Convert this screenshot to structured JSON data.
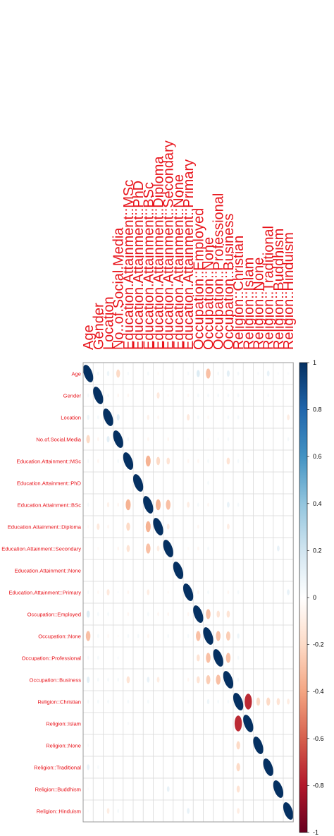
{
  "chart_data": {
    "type": "heatmap",
    "variables": [
      "Age",
      "Gender",
      "Location",
      "No..of.Social.Media",
      "Education.Attainment::MSc",
      "Education.Attainment::PhD",
      "Education.Attainment::BSc",
      "Education.Attainment::Diploma",
      "Education.Attainment::Secondary",
      "Education.Attainment::None",
      "Education.Attainment::Primary",
      "Occupation::Employed",
      "Occupation::None",
      "Occupation::Professional",
      "Occupation::Business",
      "Religion::Christian",
      "Religion::Islam",
      "Religion::None",
      "Religion::Traditional",
      "Religion::Buddhism",
      "Religion::Hinduism"
    ],
    "row_labels": [
      "Age",
      "Gender",
      "Location",
      "No.of.Social.Media",
      "Education.Attainment::MSc",
      "Education.Attainment::PhD",
      "Education.Attainment::BSc",
      "Education.Attainment::Diploma",
      "Education.Attainment::Secondary",
      "Education.Attainment::None",
      "Education.Attainment::Primary",
      "Occupation::Employed",
      "Occupation::None",
      "Occupation::Professional",
      "Occupation::Business",
      "Religion::Christian",
      "Religion::Islam",
      "Religion::None",
      "Religion::Traditional",
      "Religion::Buddhism",
      "Religion::Hinduism"
    ],
    "col_labels": [
      "Age",
      "Gender",
      "Location",
      "No..of.Social.Media",
      "Education.Attainment::MSc",
      "Education.Attainment::PhD",
      "Education.Attainment::BSc",
      "Education.Attainment::Diploma",
      "Education.Attainment::Secondary",
      "Education.Attainment::None",
      "Education.Attainment::Primary",
      "Occupation::Employed",
      "Occupation::None",
      "Occupation::Professional",
      "Occupation::Business",
      "Religion::Christian",
      "Religion::Islam",
      "Religion::None",
      "Religion::Traditional",
      "Religion::Buddhism",
      "Religion::Hinduism"
    ],
    "matrix": [
      [
        1.0,
        0.05,
        0.08,
        -0.2,
        0.04,
        0.0,
        0.05,
        -0.03,
        0.0,
        0.0,
        0.04,
        0.15,
        -0.3,
        0.05,
        0.12,
        0.05,
        0.0,
        0.03,
        0.1,
        0.02,
        0.02
      ],
      [
        0.05,
        1.0,
        0.05,
        -0.05,
        -0.05,
        0.0,
        0.0,
        -0.12,
        -0.03,
        0.0,
        -0.04,
        0.05,
        0.05,
        0.05,
        0.05,
        0.05,
        0.0,
        0.0,
        0.04,
        0.0,
        0.0
      ],
      [
        0.08,
        0.05,
        1.0,
        0.12,
        0.0,
        0.0,
        -0.08,
        -0.05,
        0.0,
        0.0,
        -0.12,
        0.05,
        -0.04,
        0.0,
        0.05,
        0.05,
        0.0,
        0.0,
        0.0,
        0.0,
        -0.1
      ],
      [
        -0.2,
        -0.05,
        0.12,
        1.0,
        0.05,
        0.0,
        -0.05,
        0.0,
        -0.05,
        0.0,
        0.02,
        0.0,
        -0.02,
        0.03,
        0.05,
        0.0,
        0.0,
        0.0,
        0.0,
        0.0,
        0.05
      ],
      [
        0.04,
        -0.05,
        0.0,
        0.05,
        1.0,
        0.0,
        -0.35,
        -0.2,
        -0.15,
        0.0,
        -0.05,
        -0.05,
        0.05,
        0.0,
        -0.15,
        0.05,
        0.03,
        0.0,
        0.0,
        0.0,
        0.0
      ],
      [
        0.0,
        0.0,
        0.0,
        0.0,
        0.0,
        1.0,
        0.0,
        0.0,
        0.0,
        0.0,
        0.0,
        0.0,
        0.05,
        0.0,
        0.0,
        0.0,
        0.0,
        0.0,
        0.0,
        0.0,
        0.0
      ],
      [
        0.05,
        0.0,
        -0.08,
        -0.05,
        -0.35,
        0.0,
        1.0,
        -0.35,
        -0.3,
        0.0,
        -0.1,
        0.05,
        -0.05,
        0.0,
        0.1,
        0.05,
        0.0,
        0.0,
        0.0,
        0.0,
        0.0
      ],
      [
        -0.03,
        -0.12,
        -0.05,
        0.0,
        -0.2,
        0.0,
        -0.35,
        1.0,
        -0.1,
        0.0,
        0.0,
        -0.05,
        0.0,
        0.0,
        -0.1,
        0.0,
        0.0,
        0.0,
        0.0,
        0.0,
        0.0
      ],
      [
        0.0,
        -0.03,
        0.0,
        -0.05,
        -0.15,
        0.0,
        -0.3,
        -0.1,
        1.0,
        0.0,
        -0.03,
        -0.05,
        0.05,
        0.0,
        0.0,
        0.0,
        0.0,
        0.0,
        0.0,
        0.1,
        0.0
      ],
      [
        0.0,
        0.0,
        0.0,
        0.0,
        0.0,
        0.0,
        0.0,
        0.0,
        0.0,
        1.0,
        0.0,
        0.0,
        0.0,
        0.0,
        0.0,
        0.0,
        0.0,
        0.0,
        0.0,
        0.0,
        0.0
      ],
      [
        0.04,
        -0.04,
        -0.12,
        0.02,
        -0.05,
        0.0,
        -0.1,
        0.0,
        -0.03,
        0.0,
        1.0,
        -0.05,
        0.05,
        0.0,
        -0.05,
        0.05,
        0.0,
        0.0,
        0.0,
        0.0,
        0.1
      ],
      [
        0.15,
        0.05,
        0.05,
        0.0,
        -0.05,
        0.0,
        0.05,
        -0.05,
        -0.05,
        0.0,
        -0.05,
        1.0,
        -0.3,
        -0.15,
        -0.15,
        0.0,
        0.0,
        0.0,
        0.0,
        0.0,
        0.0
      ],
      [
        -0.3,
        0.05,
        -0.04,
        -0.02,
        0.05,
        0.05,
        -0.05,
        0.0,
        0.05,
        0.0,
        0.05,
        -0.3,
        1.0,
        -0.3,
        -0.25,
        0.08,
        0.0,
        0.0,
        0.0,
        0.0,
        0.0
      ],
      [
        0.05,
        0.05,
        0.0,
        0.03,
        0.0,
        0.0,
        0.0,
        0.0,
        0.0,
        0.0,
        0.0,
        -0.15,
        -0.3,
        1.0,
        -0.3,
        0.05,
        0.0,
        0.0,
        0.0,
        0.0,
        0.0
      ],
      [
        0.12,
        0.05,
        0.05,
        0.05,
        -0.15,
        0.0,
        0.1,
        -0.1,
        0.0,
        0.0,
        -0.05,
        -0.15,
        -0.25,
        -0.3,
        1.0,
        0.05,
        0.0,
        0.0,
        0.0,
        0.0,
        0.0
      ],
      [
        0.05,
        0.05,
        0.05,
        0.0,
        0.05,
        0.0,
        0.05,
        0.0,
        0.0,
        0.0,
        0.05,
        0.0,
        0.08,
        0.05,
        0.05,
        1.0,
        -0.75,
        -0.2,
        -0.2,
        -0.15,
        -0.1
      ],
      [
        0.0,
        0.0,
        0.0,
        0.0,
        0.03,
        0.0,
        0.0,
        0.0,
        0.0,
        0.0,
        0.0,
        0.0,
        0.0,
        0.0,
        0.0,
        -0.75,
        1.0,
        0.0,
        0.0,
        0.0,
        0.0
      ],
      [
        0.03,
        0.0,
        0.0,
        0.0,
        0.0,
        0.0,
        0.0,
        0.0,
        0.0,
        0.0,
        0.0,
        0.0,
        0.0,
        0.0,
        0.0,
        -0.2,
        0.0,
        1.0,
        0.0,
        0.0,
        0.0
      ],
      [
        0.1,
        0.04,
        0.0,
        0.0,
        0.0,
        0.0,
        0.0,
        0.0,
        0.0,
        0.0,
        0.0,
        0.0,
        0.0,
        0.0,
        0.0,
        -0.2,
        0.0,
        0.0,
        1.0,
        0.0,
        0.0
      ],
      [
        0.02,
        0.0,
        0.0,
        0.0,
        0.0,
        0.0,
        0.0,
        0.0,
        0.1,
        0.0,
        0.0,
        0.0,
        0.0,
        0.0,
        0.0,
        -0.15,
        0.0,
        0.0,
        0.0,
        1.0,
        0.0
      ],
      [
        0.02,
        0.0,
        -0.1,
        0.05,
        0.0,
        0.0,
        0.0,
        0.0,
        0.0,
        0.0,
        0.1,
        0.0,
        0.0,
        0.0,
        0.0,
        -0.1,
        0.0,
        0.0,
        0.0,
        0.0,
        1.0
      ]
    ],
    "colorbar": {
      "range": [
        -1,
        1
      ],
      "ticks": [
        "1",
        "0.8",
        "0.6",
        "0.4",
        "0.2",
        "0",
        "-0.2",
        "-0.4",
        "-0.6",
        "-0.8",
        "-1"
      ],
      "colors": [
        "#67001f",
        "#b2182b",
        "#d6604d",
        "#f4a582",
        "#fddbc7",
        "#ffffff",
        "#d1e5f0",
        "#92c5de",
        "#4393c3",
        "#2166ac",
        "#053061"
      ]
    },
    "title": "",
    "xlabel": "",
    "ylabel": "",
    "grid": true,
    "legend": "right"
  }
}
